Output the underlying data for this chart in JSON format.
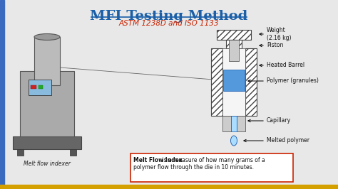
{
  "title": "MFI Testing Method",
  "subtitle": "ASTM 1238D and ISO 1133",
  "title_color": "#1a5fa8",
  "subtitle_color": "#cc2200",
  "bg_color": "#e8e8e8",
  "left_border_color": "#3a6abf",
  "bottom_border_color": "#d4a000",
  "caption_box_text_bold": "Melt Flow Index",
  "caption_box_text": " is a measure of how many grams of a\npolymer flow through the die in 10 minutes.",
  "caption_box_border": "#cc2200",
  "label_weight": "Weight\n(2.16 kg)",
  "label_piston": "Piston",
  "label_barrel": "Heated Barrel",
  "label_polymer": "Polymer (granules)",
  "label_capillary": "Capillary",
  "label_melted": "Melted polymer",
  "label_indexer": "Melt flow indexer"
}
